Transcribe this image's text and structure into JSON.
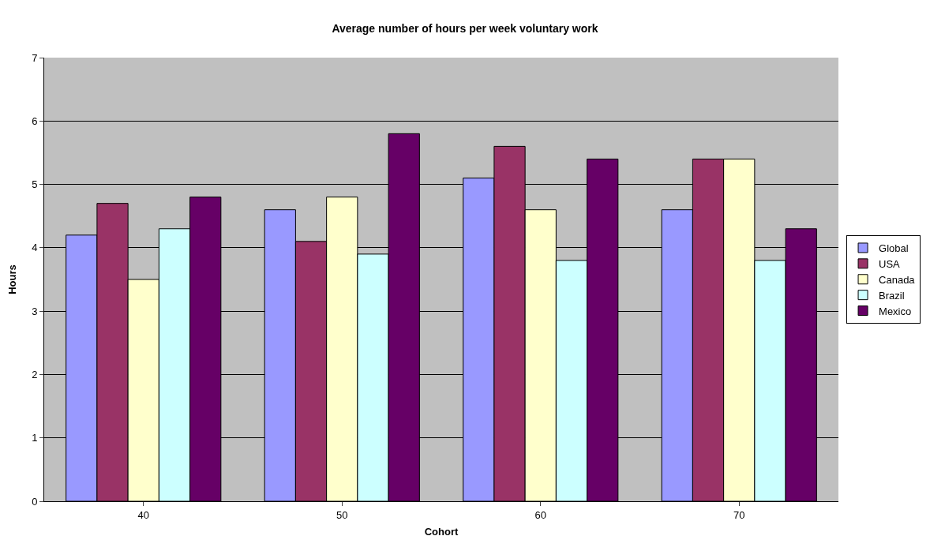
{
  "chart_data": {
    "type": "bar",
    "title": "Average number of hours per week voluntary work",
    "xlabel": "Cohort",
    "ylabel": "Hours",
    "categories": [
      "40",
      "50",
      "60",
      "70"
    ],
    "series": [
      {
        "name": "Global",
        "color": "#9999ff",
        "values": [
          4.2,
          4.6,
          5.1,
          4.6
        ]
      },
      {
        "name": "USA",
        "color": "#993366",
        "values": [
          4.7,
          4.1,
          5.6,
          5.4
        ]
      },
      {
        "name": "Canada",
        "color": "#ffffcc",
        "values": [
          3.5,
          4.8,
          4.6,
          5.4
        ]
      },
      {
        "name": "Brazil",
        "color": "#ccffff",
        "values": [
          4.3,
          3.9,
          3.8,
          3.8
        ]
      },
      {
        "name": "Mexico",
        "color": "#660066",
        "values": [
          4.8,
          5.8,
          5.4,
          4.3
        ]
      }
    ],
    "ylim": [
      0,
      7
    ],
    "yticks": [
      0,
      1,
      2,
      3,
      4,
      5,
      6,
      7
    ],
    "grid": "y",
    "legend": "right"
  }
}
